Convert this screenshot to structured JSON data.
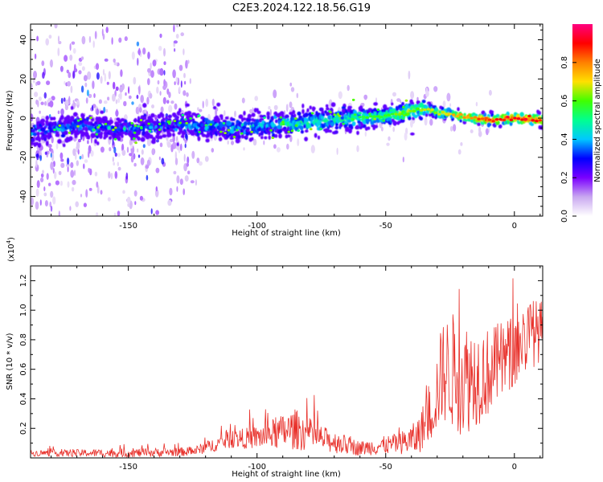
{
  "title": "C2E3.2024.122.18.56.G19",
  "chart_data": [
    {
      "type": "heatmap",
      "xlabel": "Height of straight line (km)",
      "ylabel": "Frequency (Hz)",
      "xlim": [
        -188,
        11
      ],
      "ylim": [
        -50,
        48
      ],
      "xticks": [
        -150,
        -100,
        -50,
        0
      ],
      "yticks": [
        -40,
        -20,
        0,
        20,
        40
      ],
      "colorbar": {
        "label": "Normalized spectral amplitude",
        "range": [
          0.0,
          1.0
        ],
        "ticks": [
          "0.0",
          "0.2",
          "0.4",
          "0.6",
          "0.8"
        ],
        "colors": [
          "#ffffff",
          "#c9a8f0",
          "#7a00ff",
          "#0000ff",
          "#00c8ff",
          "#00ff90",
          "#40ff00",
          "#ffe000",
          "#ff8000",
          "#ff0000",
          "#ff0080"
        ]
      },
      "ridge": {
        "x": [
          -188,
          -170,
          -150,
          -130,
          -110,
          -90,
          -70,
          -50,
          -35,
          -30,
          -20,
          -10,
          0,
          10
        ],
        "y": [
          -7,
          -4,
          -6,
          -3,
          -5,
          -3,
          -1,
          1,
          5,
          3,
          1,
          -1,
          0,
          -1
        ],
        "amplitude": [
          0.35,
          0.33,
          0.32,
          0.33,
          0.38,
          0.42,
          0.48,
          0.55,
          0.6,
          0.62,
          0.72,
          0.82,
          0.88,
          0.85
        ]
      },
      "noise_region_x": [
        -188,
        -125
      ]
    },
    {
      "type": "line",
      "color": "#e8302a",
      "xlabel": "Height of straight line (km)",
      "ylabel": "SNR (10 * v/v)",
      "yscale_label": "(x10",
      "yscale_exp": "4",
      "yscale_close": ")",
      "xlim": [
        -188,
        11
      ],
      "ylim": [
        0,
        1.3
      ],
      "xticks": [
        -150,
        -100,
        -50,
        0
      ],
      "yticks": [
        "0.2",
        "0.4",
        "0.6",
        "0.8",
        "1.0",
        "1.2"
      ],
      "envelope": {
        "x": [
          -188,
          -150,
          -125,
          -110,
          -100,
          -85,
          -75,
          -60,
          -45,
          -38,
          -32,
          -28,
          -24,
          -20,
          -10,
          0,
          5,
          11
        ],
        "mean": [
          0.03,
          0.03,
          0.04,
          0.12,
          0.13,
          0.18,
          0.12,
          0.06,
          0.09,
          0.12,
          0.3,
          0.55,
          0.55,
          0.5,
          0.55,
          0.7,
          0.8,
          0.85
        ],
        "spread": [
          0.02,
          0.03,
          0.03,
          0.06,
          0.08,
          0.14,
          0.09,
          0.05,
          0.07,
          0.12,
          0.2,
          0.35,
          0.4,
          0.4,
          0.3,
          0.25,
          0.25,
          0.2
        ]
      }
    }
  ]
}
